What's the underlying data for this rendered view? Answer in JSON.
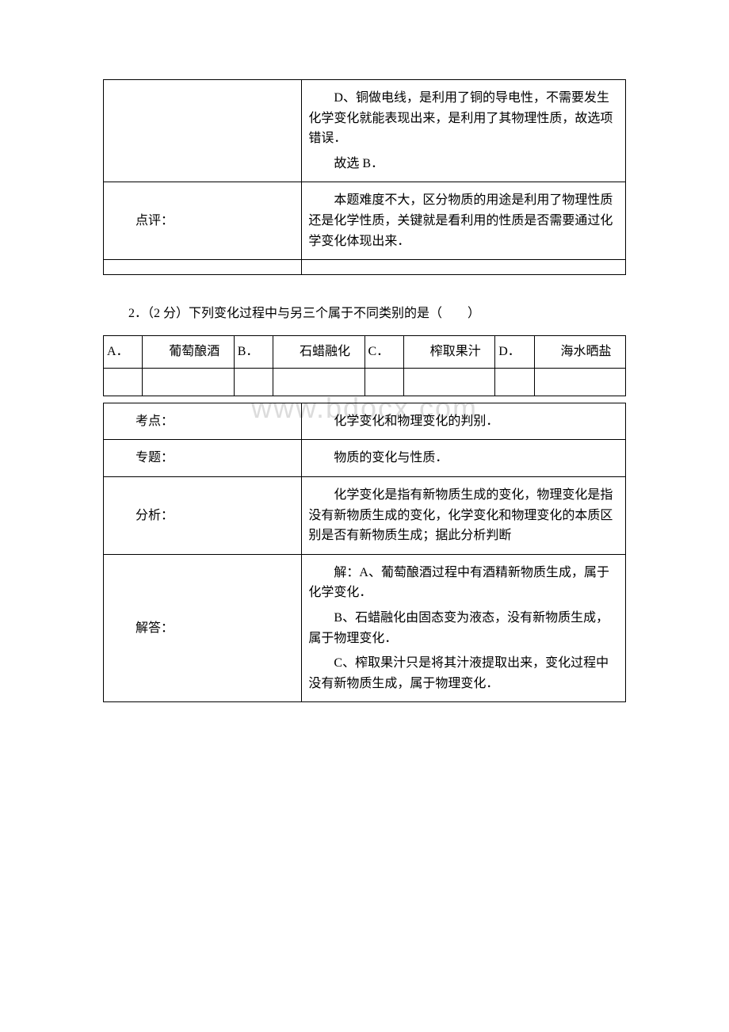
{
  "colors": {
    "background": "#ffffff",
    "text": "#000000",
    "border": "#000000",
    "watermark": "#dcdcdc"
  },
  "typography": {
    "body_font": "SimSun",
    "body_size_pt": 12,
    "watermark_size_pt": 28
  },
  "watermark": "www.bdocx.com",
  "table1": {
    "row1_content_paras": [
      "D、铜做电线，是利用了铜的导电性，不需要发生化学变化就能表现出来，是利用了其物理性质，故选项错误．",
      "故选 B．"
    ],
    "row2_label": "点评：",
    "row2_content": "本题难度不大，区分物质的用途是利用了物理性质还是化学性质，关键就是看利用的性质是否需要通过化学变化体现出来．"
  },
  "question2": {
    "number": "2．",
    "points": "（2 分）",
    "stem": "下列变化过程中与另三个属于不同类别的是（　　）",
    "options": [
      {
        "letter": "A．",
        "text": "葡萄酿酒"
      },
      {
        "letter": "B．",
        "text": "石蜡融化"
      },
      {
        "letter": "C．",
        "text": "榨取果汁"
      },
      {
        "letter": "D．",
        "text": "海水晒盐"
      }
    ]
  },
  "table2": {
    "rows": [
      {
        "label": "考点：",
        "paras": [
          "化学变化和物理变化的判别．"
        ]
      },
      {
        "label": "专题：",
        "paras": [
          "物质的变化与性质．"
        ]
      },
      {
        "label": "分析：",
        "paras": [
          "化学变化是指有新物质生成的变化，物理变化是指没有新物质生成的变化，化学变化和物理变化的本质区别是否有新物质生成；据此分析判断"
        ]
      },
      {
        "label": "解答：",
        "paras": [
          "解：A、葡萄酿酒过程中有酒精新物质生成，属于化学变化．",
          "B、石蜡融化由固态变为液态，没有新物质生成，属于物理变化．",
          "C、榨取果汁只是将其汁液提取出来，变化过程中没有新物质生成，属于物理变化．"
        ]
      }
    ]
  }
}
